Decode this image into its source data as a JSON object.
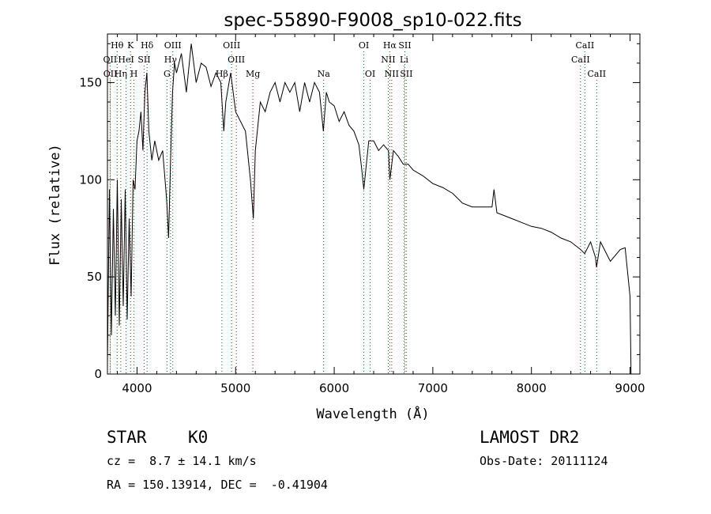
{
  "chart_data": {
    "type": "line",
    "title": "spec-55890-F9008_sp10-022.fits",
    "xlabel": "Wavelength (Å)",
    "ylabel": "Flux (relative)",
    "xlim": [
      3700,
      9100
    ],
    "ylim": [
      0,
      175
    ],
    "xticks": [
      4000,
      5000,
      6000,
      7000,
      8000,
      9000
    ],
    "yticks": [
      0,
      50,
      100,
      150
    ],
    "grid": false,
    "line_color": "#000000",
    "marker_line_color": "#cc0000",
    "line_markers": [
      {
        "label": "Hθ",
        "x": 3798,
        "row": 0
      },
      {
        "label": "K",
        "x": 3934,
        "row": 0
      },
      {
        "label": "Hδ",
        "x": 4102,
        "row": 0
      },
      {
        "label": "OIII",
        "x": 4363,
        "row": 0
      },
      {
        "label": "OIII",
        "x": 4959,
        "row": 0
      },
      {
        "label": "OI",
        "x": 6300,
        "row": 0
      },
      {
        "label": "Hα",
        "x": 6563,
        "row": 0
      },
      {
        "label": "SII",
        "x": 6716,
        "row": 0
      },
      {
        "label": "CaII",
        "x": 8542,
        "row": 0
      },
      {
        "label": "OII",
        "x": 3727,
        "row": 1
      },
      {
        "label": "HeI",
        "x": 3889,
        "row": 1
      },
      {
        "label": "SII",
        "x": 4072,
        "row": 1
      },
      {
        "label": "Hγ",
        "x": 4340,
        "row": 1
      },
      {
        "label": "OIII",
        "x": 5007,
        "row": 1
      },
      {
        "label": "NII",
        "x": 6548,
        "row": 1
      },
      {
        "label": "Li",
        "x": 6708,
        "row": 1
      },
      {
        "label": "CaII",
        "x": 8498,
        "row": 1
      },
      {
        "label": "OII",
        "x": 3729,
        "row": 2
      },
      {
        "label": "Hη",
        "x": 3835,
        "row": 2
      },
      {
        "label": "H",
        "x": 3969,
        "row": 2
      },
      {
        "label": "G",
        "x": 4304,
        "row": 2
      },
      {
        "label": "Hβ",
        "x": 4861,
        "row": 2
      },
      {
        "label": "Mg",
        "x": 5175,
        "row": 2
      },
      {
        "label": "Na",
        "x": 5893,
        "row": 2
      },
      {
        "label": "OI",
        "x": 6364,
        "row": 2
      },
      {
        "label": "NII",
        "x": 6583,
        "row": 2
      },
      {
        "label": "SII",
        "x": 6731,
        "row": 2
      },
      {
        "label": "CaII",
        "x": 8662,
        "row": 2
      }
    ],
    "series": [
      {
        "x": [
          3700,
          3720,
          3740,
          3760,
          3780,
          3800,
          3820,
          3840,
          3860,
          3880,
          3900,
          3920,
          3940,
          3960,
          3980,
          4000,
          4020,
          4040,
          4060,
          4080,
          4100,
          4120,
          4150,
          4180,
          4220,
          4260,
          4300,
          4320,
          4340,
          4360,
          4380,
          4400,
          4450,
          4500,
          4550,
          4600,
          4650,
          4700,
          4750,
          4800,
          4850,
          4880,
          4900,
          4950,
          5000,
          5050,
          5100,
          5150,
          5180,
          5200,
          5250,
          5300,
          5350,
          5400,
          5450,
          5500,
          5550,
          5600,
          5650,
          5700,
          5750,
          5800,
          5850,
          5890,
          5920,
          5950,
          6000,
          6050,
          6100,
          6150,
          6200,
          6250,
          6280,
          6300,
          6350,
          6400,
          6450,
          6500,
          6550,
          6564,
          6600,
          6650,
          6700,
          6750,
          6800,
          6900,
          7000,
          7100,
          7200,
          7300,
          7400,
          7500,
          7600,
          7620,
          7650,
          7700,
          7800,
          7900,
          8000,
          8100,
          8200,
          8300,
          8400,
          8500,
          8540,
          8600,
          8650,
          8660,
          8700,
          8800,
          8900,
          8950,
          9000,
          9010
        ],
        "y": [
          5,
          95,
          20,
          85,
          30,
          100,
          25,
          90,
          35,
          95,
          28,
          80,
          40,
          100,
          95,
          120,
          125,
          135,
          115,
          145,
          155,
          125,
          110,
          120,
          110,
          115,
          90,
          70,
          110,
          145,
          160,
          155,
          165,
          145,
          170,
          150,
          160,
          158,
          148,
          155,
          150,
          125,
          140,
          155,
          135,
          130,
          125,
          100,
          80,
          115,
          140,
          135,
          145,
          150,
          140,
          150,
          145,
          150,
          135,
          150,
          140,
          150,
          145,
          125,
          145,
          140,
          138,
          130,
          135,
          128,
          125,
          118,
          105,
          95,
          120,
          120,
          115,
          118,
          115,
          100,
          115,
          112,
          108,
          108,
          105,
          102,
          98,
          96,
          93,
          88,
          86,
          86,
          86,
          95,
          83,
          82,
          80,
          78,
          76,
          75,
          73,
          70,
          68,
          64,
          62,
          68,
          60,
          55,
          68,
          58,
          64,
          65,
          40,
          0
        ]
      }
    ]
  },
  "info": {
    "class_label": "STAR",
    "subclass": "K0",
    "redshift": "cz =  8.7 ± 14.1 km/s",
    "coords": "RA = 150.13914, DEC =  -0.41904",
    "survey": "LAMOST DR2",
    "obs_date": "Obs-Date: 20111124"
  }
}
